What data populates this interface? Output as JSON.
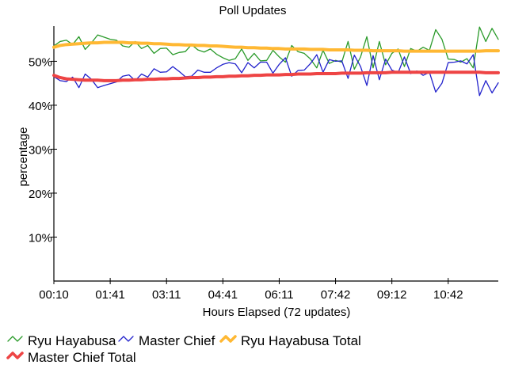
{
  "chart_data": {
    "type": "line",
    "title": "Poll Updates",
    "xlabel": "Hours Elapsed (72 updates)",
    "ylabel": "percentage",
    "x_ticks": [
      "00:10",
      "01:41",
      "03:11",
      "04:41",
      "06:11",
      "07:42",
      "09:12",
      "10:42"
    ],
    "y_ticks": [
      {
        "value": 10,
        "label": "10%"
      },
      {
        "value": 20,
        "label": "20%"
      },
      {
        "value": 30,
        "label": "30%"
      },
      {
        "value": 40,
        "label": "40%"
      },
      {
        "value": 50,
        "label": "50%"
      }
    ],
    "ylim": [
      0,
      58
    ],
    "n_updates": 72,
    "grid": false,
    "legend_position": "bottom-left",
    "series": [
      {
        "name": "Ryu Hayabusa",
        "color": "#2a9a2a",
        "line_width": 1.3,
        "values": [
          53.5,
          54.5,
          54.8,
          53.8,
          55.6,
          52.7,
          54.2,
          56.0,
          55.5,
          55.0,
          54.8,
          53.5,
          53.2,
          54.5,
          52.9,
          53.6,
          51.8,
          52.9,
          53.0,
          51.5,
          52.0,
          52.2,
          53.8,
          52.6,
          52.1,
          52.8,
          51.6,
          50.8,
          50.2,
          50.6,
          52.8,
          50.2,
          51.8,
          50.1,
          50.2,
          52.5,
          51.0,
          49.8,
          53.6,
          52.2,
          51.8,
          50.5,
          48.5,
          52.5,
          49.5,
          50.2,
          49.8,
          54.5,
          48.2,
          51.0,
          55.6,
          48.5,
          54.5,
          49.2,
          51.8,
          52.8,
          48.8,
          52.9,
          52.3,
          53.2,
          52.5,
          57.2,
          55.0,
          50.5,
          50.4,
          49.8,
          50.6,
          48.5,
          57.8,
          54.5,
          57.5,
          55.0
        ]
      },
      {
        "name": "Master Chief",
        "color": "#2222cc",
        "line_width": 1.3,
        "values": [
          46.5,
          45.6,
          45.4,
          46.4,
          44.0,
          47.1,
          45.9,
          44.0,
          44.5,
          44.9,
          45.3,
          46.6,
          46.9,
          45.6,
          47.1,
          46.4,
          48.3,
          47.5,
          47.6,
          48.8,
          47.7,
          46.5,
          46.6,
          48.0,
          47.5,
          47.5,
          48.5,
          49.3,
          49.7,
          49.4,
          47.4,
          49.7,
          48.5,
          49.8,
          49.8,
          47.3,
          49.3,
          50.8,
          46.6,
          47.9,
          48.0,
          49.5,
          51.5,
          47.5,
          50.4,
          50.0,
          50.1,
          46.1,
          51.4,
          48.8,
          44.5,
          51.3,
          45.8,
          50.5,
          48.0,
          47.4,
          51.0,
          47.2,
          47.8,
          46.8,
          47.5,
          43.0,
          45.0,
          49.7,
          49.8,
          50.1,
          49.4,
          51.5,
          42.2,
          45.6,
          42.8,
          45.1
        ]
      },
      {
        "name": "Ryu Hayabusa Total",
        "color": "#ffb833",
        "line_width": 4,
        "values": [
          53.2,
          53.6,
          53.8,
          53.9,
          54.0,
          54.1,
          54.2,
          54.2,
          54.3,
          54.3,
          54.3,
          54.3,
          54.2,
          54.2,
          54.1,
          54.1,
          54.0,
          54.0,
          53.9,
          53.8,
          53.8,
          53.7,
          53.7,
          53.6,
          53.6,
          53.5,
          53.5,
          53.4,
          53.3,
          53.2,
          53.2,
          53.1,
          53.1,
          53.0,
          53.0,
          52.9,
          52.9,
          52.8,
          52.8,
          52.8,
          52.8,
          52.7,
          52.7,
          52.7,
          52.6,
          52.6,
          52.6,
          52.6,
          52.5,
          52.5,
          52.5,
          52.4,
          52.4,
          52.4,
          52.4,
          52.4,
          52.3,
          52.3,
          52.3,
          52.3,
          52.3,
          52.3,
          52.3,
          52.3,
          52.3,
          52.3,
          52.3,
          52.3,
          52.3,
          52.4,
          52.4,
          52.4
        ]
      },
      {
        "name": "Master Chief Total",
        "color": "#ee4444",
        "line_width": 4,
        "values": [
          46.8,
          46.3,
          46.0,
          45.9,
          45.8,
          45.7,
          45.7,
          45.7,
          45.6,
          45.6,
          45.6,
          45.7,
          45.7,
          45.8,
          45.8,
          45.9,
          45.9,
          46.0,
          46.0,
          46.1,
          46.1,
          46.2,
          46.3,
          46.3,
          46.4,
          46.4,
          46.5,
          46.5,
          46.6,
          46.6,
          46.7,
          46.7,
          46.8,
          46.8,
          46.9,
          46.9,
          46.9,
          47.0,
          47.0,
          47.1,
          47.1,
          47.1,
          47.2,
          47.2,
          47.2,
          47.2,
          47.3,
          47.3,
          47.3,
          47.3,
          47.4,
          47.4,
          47.4,
          47.4,
          47.5,
          47.5,
          47.5,
          47.5,
          47.5,
          47.5,
          47.5,
          47.5,
          47.5,
          47.5,
          47.5,
          47.5,
          47.5,
          47.5,
          47.5,
          47.4,
          47.4,
          47.4
        ]
      }
    ]
  }
}
